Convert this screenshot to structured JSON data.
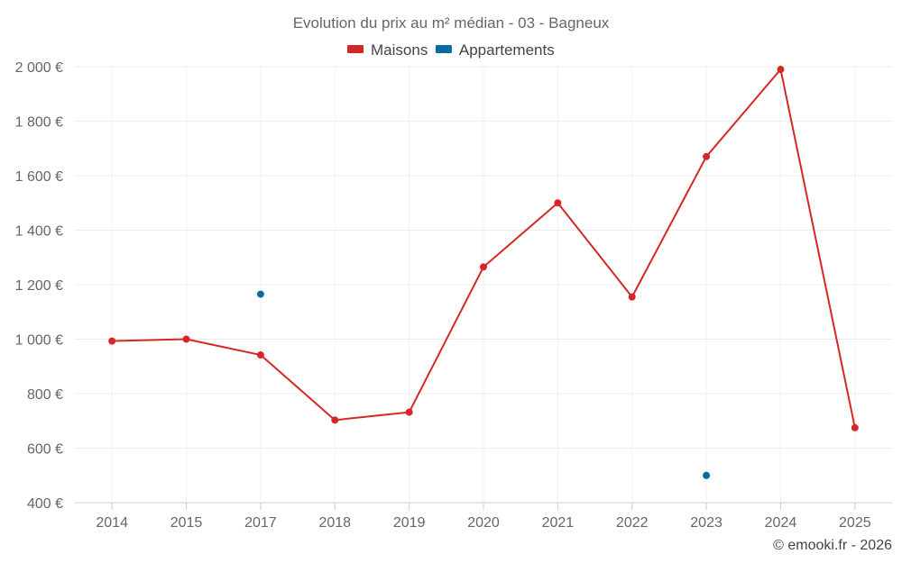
{
  "chart_data": {
    "type": "line",
    "title": "Evolution du prix au m² médian - 03 - Bagneux",
    "categories": [
      "2014",
      "2015",
      "2017",
      "2018",
      "2019",
      "2020",
      "2021",
      "2022",
      "2023",
      "2024",
      "2025"
    ],
    "series": [
      {
        "name": "Maisons",
        "color": "#d62728",
        "values": [
          993,
          1000,
          942,
          703,
          732,
          1265,
          1500,
          1155,
          1670,
          1990,
          675
        ]
      },
      {
        "name": "Appartements",
        "color": "#0a6aa1",
        "values": [
          null,
          null,
          1165,
          null,
          null,
          null,
          null,
          null,
          500,
          null,
          null
        ]
      }
    ],
    "y_ticks": [
      "2 000 €",
      "1 800 €",
      "1 600 €",
      "1 400 €",
      "1 200 €",
      "1 000 €",
      "800 €",
      "600 €",
      "400 €"
    ],
    "y_tick_values": [
      2000,
      1800,
      1600,
      1400,
      1200,
      1000,
      800,
      600,
      400
    ],
    "ylim": [
      400,
      2000
    ],
    "legend_position": "top-center",
    "grid": true,
    "credit": "© emooki.fr - 2026"
  }
}
